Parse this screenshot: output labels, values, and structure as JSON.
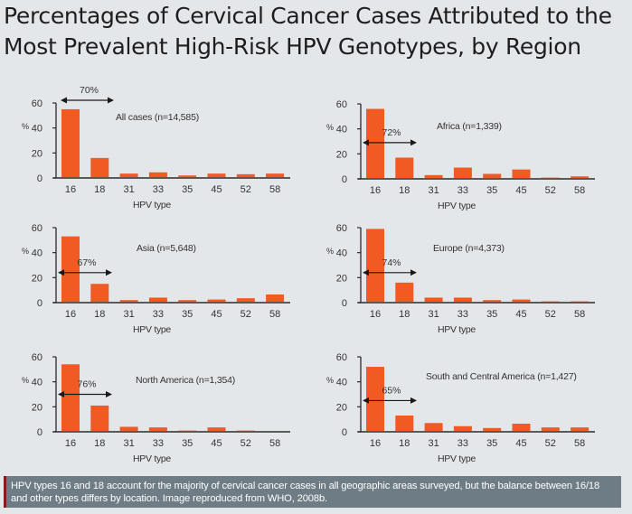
{
  "page": {
    "title_lines": [
      "Percentages of Cervical Cancer Cases Attributed to the",
      "Most Prevalent High-Risk HPV Genotypes, by Region"
    ],
    "caption_lines": [
      "HPV types 16 and 18 account for the majority of cervical cancer cases in all geographic areas surveyed, but the balance between 16/18",
      "and other types differs by location. Image reproduced from WHO, 2008b."
    ],
    "colors": {
      "bar": "#f15a22",
      "background": "#e4e7ea",
      "caption_background": "#6e7c85",
      "caption_accent": "#8b1a1a"
    }
  },
  "chart_data": [
    {
      "type": "bar",
      "title": "All cases (n=14,585)",
      "xlabel": "HPV type",
      "ylabel": "%",
      "ylim": [
        0,
        60
      ],
      "yticks": [
        0,
        20,
        40,
        60
      ],
      "categories": [
        "16",
        "18",
        "31",
        "33",
        "35",
        "45",
        "52",
        "58"
      ],
      "values": [
        55,
        16,
        3.5,
        4.5,
        2,
        3.5,
        3,
        3.5
      ],
      "annotation": {
        "text": "70%",
        "spans": [
          "16",
          "18"
        ],
        "level": "above-top"
      },
      "legend": "none",
      "grid": false
    },
    {
      "type": "bar",
      "title": "Africa (n=1,339)",
      "xlabel": "HPV type",
      "ylabel": "%",
      "ylim": [
        0,
        60
      ],
      "yticks": [
        0,
        20,
        40,
        60
      ],
      "categories": [
        "16",
        "18",
        "31",
        "33",
        "35",
        "45",
        "52",
        "58"
      ],
      "values": [
        56,
        17,
        3,
        9,
        4,
        7.5,
        1,
        2
      ],
      "annotation": {
        "text": "72%",
        "spans": [
          "16",
          "18"
        ],
        "level": 29
      },
      "legend": "none",
      "grid": false
    },
    {
      "type": "bar",
      "title": "Asia (n=5,648)",
      "xlabel": "HPV type",
      "ylabel": "%",
      "ylim": [
        0,
        60
      ],
      "yticks": [
        0,
        20,
        40,
        60
      ],
      "categories": [
        "16",
        "18",
        "31",
        "33",
        "35",
        "45",
        "52",
        "58"
      ],
      "values": [
        53,
        15,
        2,
        4,
        2,
        2.5,
        3.5,
        6.5
      ],
      "annotation": {
        "text": "67%",
        "spans": [
          "16",
          "18"
        ],
        "level": 24
      },
      "legend": "none",
      "grid": false
    },
    {
      "type": "bar",
      "title": "Europe (n=4,373)",
      "xlabel": "HPV type",
      "ylabel": "%",
      "ylim": [
        0,
        60
      ],
      "yticks": [
        0,
        20,
        40,
        60
      ],
      "categories": [
        "16",
        "18",
        "31",
        "33",
        "35",
        "45",
        "52",
        "58"
      ],
      "values": [
        59,
        16,
        4,
        4,
        2,
        2.5,
        1,
        1
      ],
      "annotation": {
        "text": "74%",
        "spans": [
          "16",
          "18"
        ],
        "level": 24
      },
      "legend": "none",
      "grid": false
    },
    {
      "type": "bar",
      "title": "North America (n=1,354)",
      "xlabel": "HPV type",
      "ylabel": "%",
      "ylim": [
        0,
        60
      ],
      "yticks": [
        0,
        20,
        40,
        60
      ],
      "categories": [
        "16",
        "18",
        "31",
        "33",
        "35",
        "45",
        "52",
        "58"
      ],
      "values": [
        54,
        21,
        4,
        3.5,
        1,
        3.5,
        1,
        0
      ],
      "annotation": {
        "text": "76%",
        "spans": [
          "16",
          "18"
        ],
        "level": 30
      },
      "legend": "none",
      "grid": false
    },
    {
      "type": "bar",
      "title": "South and Central America (n=1,427)",
      "xlabel": "HPV type",
      "ylabel": "%",
      "ylim": [
        0,
        60
      ],
      "yticks": [
        0,
        20,
        40,
        60
      ],
      "categories": [
        "16",
        "18",
        "31",
        "33",
        "35",
        "45",
        "52",
        "58"
      ],
      "values": [
        52,
        13,
        7,
        4.5,
        3,
        6.5,
        3.5,
        3.5
      ],
      "annotation": {
        "text": "65%",
        "spans": [
          "16",
          "18"
        ],
        "level": 25
      },
      "legend": "none",
      "grid": false
    }
  ]
}
